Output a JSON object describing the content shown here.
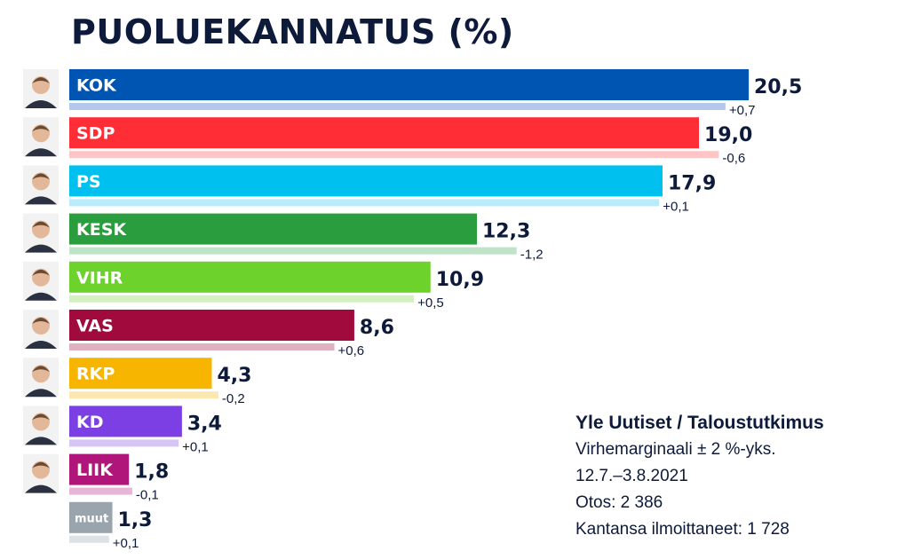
{
  "title": "PUOLUEKANNATUS (%)",
  "chart_data": {
    "type": "bar",
    "orientation": "horizontal",
    "title": "PUOLUEKANNATUS (%)",
    "unit": "%",
    "categories": [
      "KOK",
      "SDP",
      "PS",
      "KESK",
      "VIHR",
      "VAS",
      "RKP",
      "KD",
      "LIIK",
      "muut"
    ],
    "values": [
      20.5,
      19.0,
      17.9,
      12.3,
      10.9,
      8.6,
      4.3,
      3.4,
      1.8,
      1.3
    ],
    "value_labels": [
      "20,5",
      "19,0",
      "17,9",
      "12,3",
      "10,9",
      "8,6",
      "4,3",
      "3,4",
      "1,8",
      "1,3"
    ],
    "previous_values": [
      19.8,
      19.6,
      17.8,
      13.5,
      10.4,
      8.0,
      4.5,
      3.3,
      1.9,
      1.2
    ],
    "changes": [
      "+0,7",
      "-0,6",
      "+0,1",
      "-1,2",
      "+0,5",
      "+0,6",
      "-0,2",
      "+0,1",
      "-0,1",
      "+0,1"
    ],
    "colors": [
      "#0055b3",
      "#ff2e36",
      "#00c0ef",
      "#2a9d3e",
      "#6dd22b",
      "#a10a3c",
      "#f7b500",
      "#7b3fe4",
      "#b0167a",
      "#9aa4ad"
    ],
    "prev_colors": [
      "#b3c8ea",
      "#ffc4c6",
      "#b8ecfa",
      "#bfe3c6",
      "#d3f2bf",
      "#e0b1c1",
      "#fde7b0",
      "#d7c5f6",
      "#e7b6d6",
      "#dde2e6"
    ],
    "xlim": [
      0,
      20.5
    ],
    "grid": false,
    "legend": "none"
  },
  "source": {
    "head": "Yle Uutiset / Taloustutkimus",
    "margin": "Virhemarginaali ± 2 %-yks.",
    "period": "12.7.–3.8.2021",
    "sample": "Otos: 2 386",
    "respondents": "Kantansa ilmoittaneet: 1 728"
  }
}
